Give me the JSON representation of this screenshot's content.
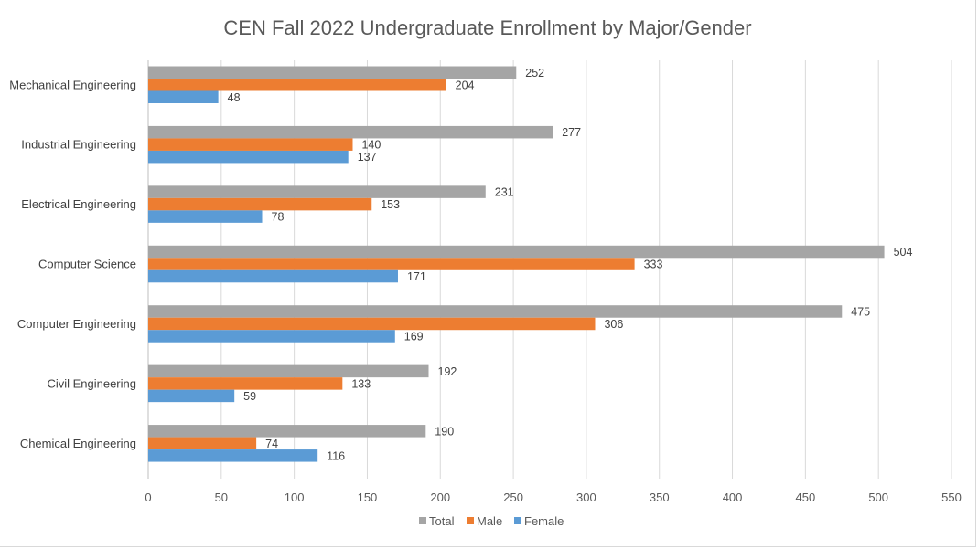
{
  "chart_data": {
    "type": "bar",
    "orientation": "horizontal",
    "title": "CEN Fall 2022 Undergraduate Enrollment by Major/Gender",
    "categories": [
      "Mechanical Engineering",
      "Industrial Engineering",
      "Electrical Engineering",
      "Computer Science",
      "Computer Engineering",
      "Civil Engineering",
      "Chemical Engineering"
    ],
    "series": [
      {
        "name": "Total",
        "color": "#a5a5a5",
        "values": [
          252,
          277,
          231,
          504,
          475,
          192,
          190
        ]
      },
      {
        "name": "Male",
        "color": "#ed7d31",
        "values": [
          204,
          140,
          153,
          333,
          306,
          133,
          74
        ]
      },
      {
        "name": "Female",
        "color": "#5b9bd5",
        "values": [
          48,
          137,
          78,
          171,
          169,
          59,
          116
        ]
      }
    ],
    "xlim": [
      0,
      550
    ],
    "xticks": [
      0,
      50,
      100,
      150,
      200,
      250,
      300,
      350,
      400,
      450,
      500,
      550
    ],
    "grid": true,
    "legend": "bottom",
    "data_labels": true
  }
}
